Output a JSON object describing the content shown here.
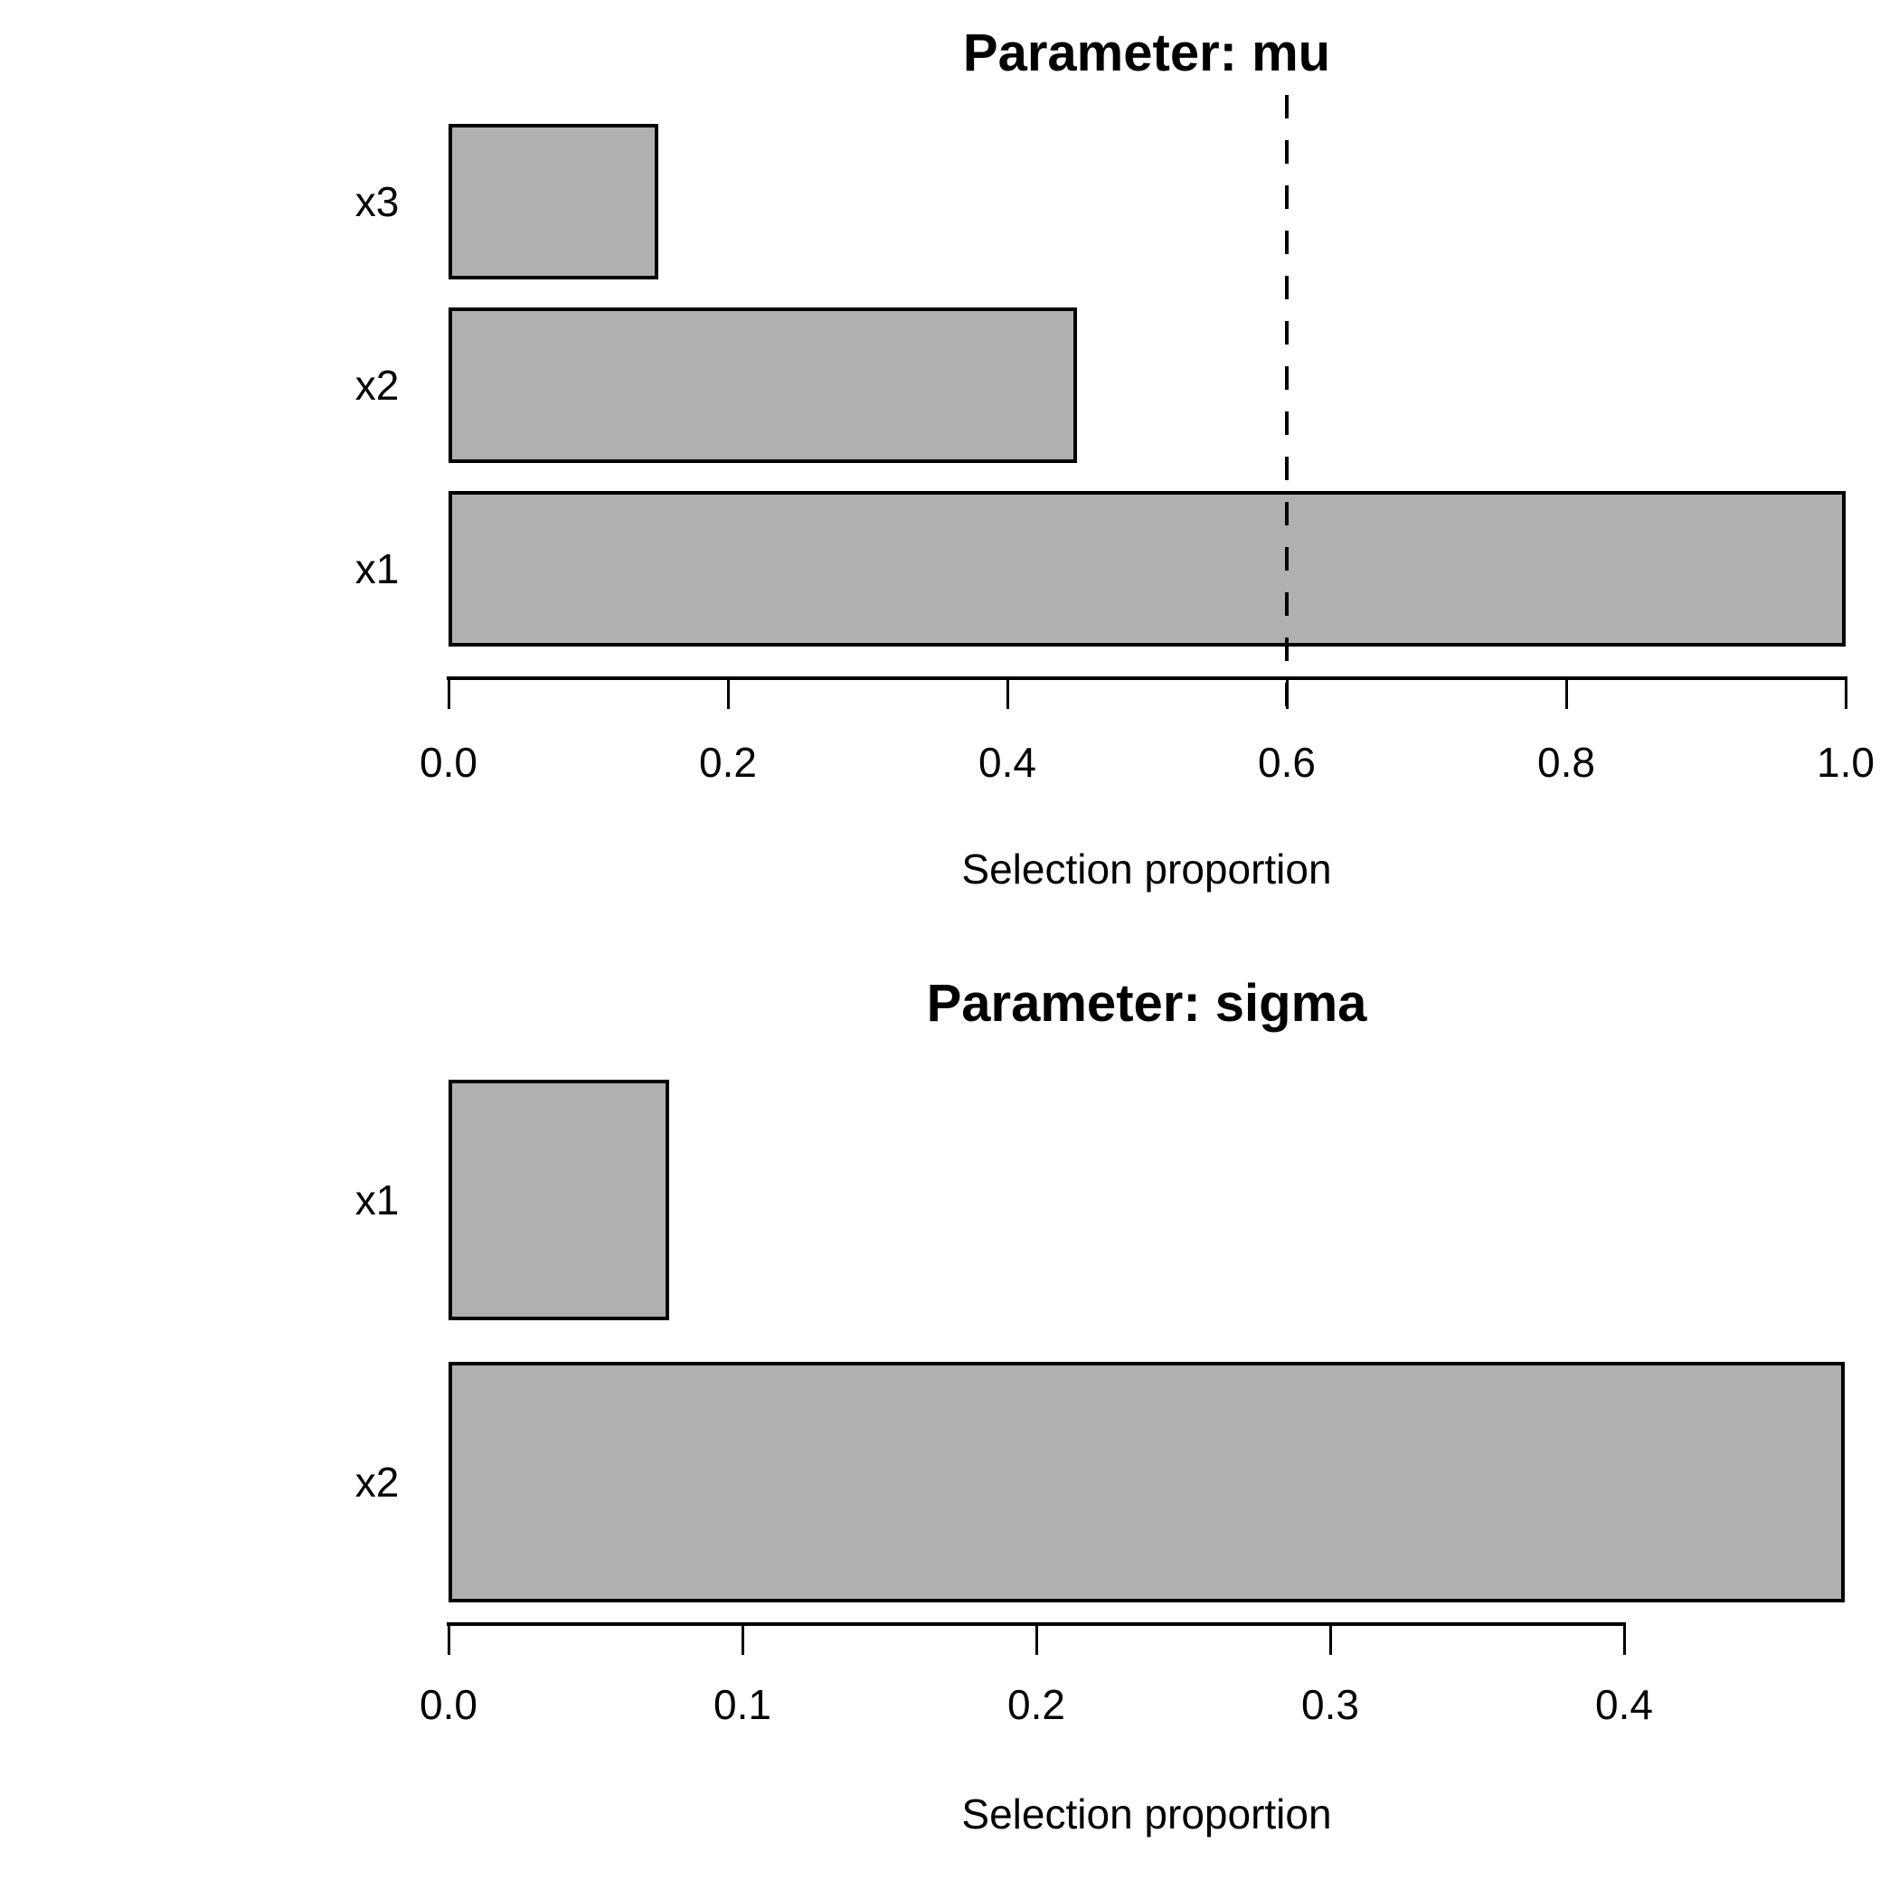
{
  "figure": {
    "background_color": "#ffffff",
    "text_color": "#000000"
  },
  "chart_data": [
    {
      "type": "bar",
      "orientation": "horizontal",
      "title": "Parameter: mu",
      "xlabel": "Selection proportion",
      "categories": [
        "x3",
        "x2",
        "x1"
      ],
      "values": [
        0.15,
        0.45,
        1.0
      ],
      "xlim": [
        0.0,
        1.0
      ],
      "xticks": [
        0.0,
        0.2,
        0.4,
        0.6,
        0.8,
        1.0
      ],
      "tick_labels": [
        "0.0",
        "0.2",
        "0.4",
        "0.6",
        "0.8",
        "1.0"
      ],
      "reference_line": {
        "value": 0.6,
        "style": "dashed",
        "color": "#000000"
      },
      "bar_color": "#b0b0b0",
      "bar_border_color": "#000000",
      "grid": false,
      "legend": false
    },
    {
      "type": "bar",
      "orientation": "horizontal",
      "title": "Parameter: sigma",
      "xlabel": "Selection proportion",
      "categories": [
        "x1",
        "x2"
      ],
      "values": [
        0.075,
        0.475
      ],
      "xlim": [
        0.0,
        0.475
      ],
      "xticks": [
        0.0,
        0.1,
        0.2,
        0.3,
        0.4
      ],
      "tick_labels": [
        "0.0",
        "0.1",
        "0.2",
        "0.3",
        "0.4"
      ],
      "reference_line": null,
      "bar_color": "#b0b0b0",
      "bar_border_color": "#000000",
      "grid": false,
      "legend": false
    }
  ]
}
